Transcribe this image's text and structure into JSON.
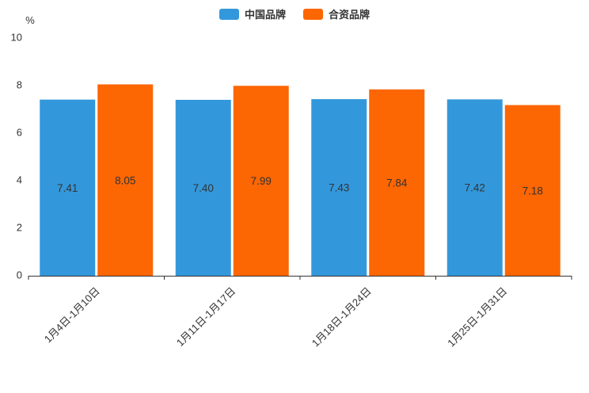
{
  "chart_data": {
    "type": "bar",
    "title": "",
    "categories": [
      "1月4日-1月10日",
      "1月11日-1月17日",
      "1月18日-1月24日",
      "1月25日-1月31日"
    ],
    "series": [
      {
        "name": "中国品牌",
        "color": "#3398db",
        "values": [
          7.41,
          7.4,
          7.43,
          7.42
        ],
        "labels": [
          "7.41",
          "7.40",
          "7.43",
          "7.42"
        ]
      },
      {
        "name": "合资品牌",
        "color": "#fc6603",
        "values": [
          8.05,
          7.99,
          7.84,
          7.18
        ],
        "labels": [
          "8.05",
          "7.99",
          "7.84",
          "7.18"
        ]
      }
    ],
    "xlabel": "",
    "ylabel": "%",
    "ylim": [
      0,
      10
    ],
    "yticks": [
      0,
      2,
      4,
      6,
      8,
      10
    ],
    "grid": false,
    "legend_position": "top-center",
    "value_label_color": "#333333",
    "axis_color": "#333333",
    "tick_label_color": "#333333",
    "x_label_rotation_deg": 45
  }
}
